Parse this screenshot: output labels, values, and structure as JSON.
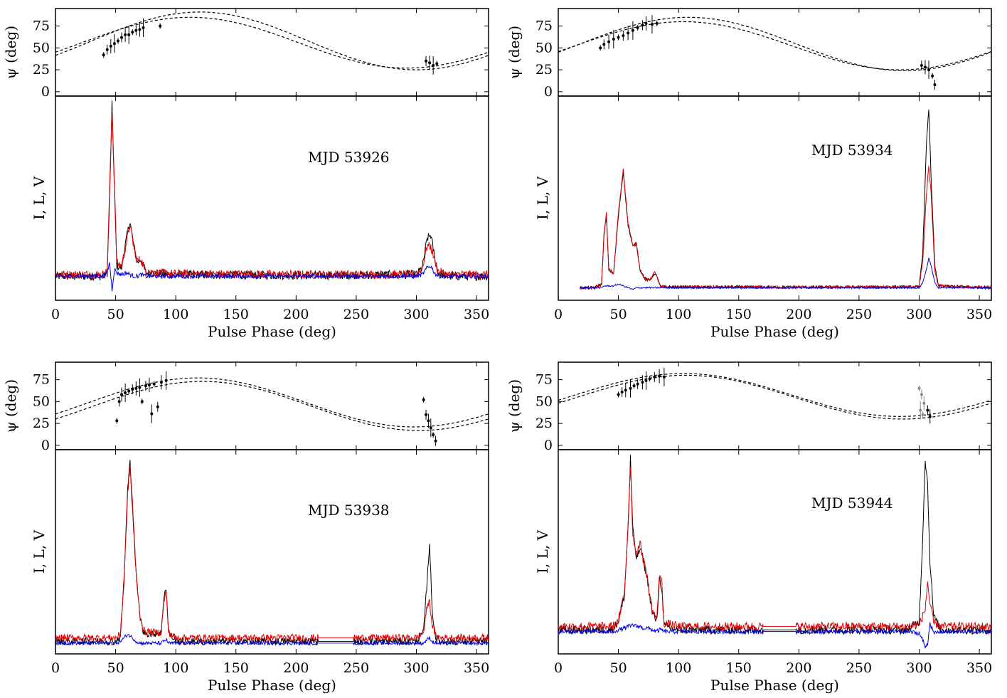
{
  "chart_data": [
    {
      "type": "line",
      "annotation": "MJD 53926",
      "xlabel": "Pulse Phase (deg)",
      "ylabel_top": "ψ (deg)",
      "ylabel_bottom": "I, L, V",
      "xlim": [
        0,
        360
      ],
      "xticks": [
        0,
        50,
        100,
        150,
        200,
        250,
        300,
        350
      ],
      "psi_ylim": [
        -5,
        95
      ],
      "psi_yticks": [
        0,
        25,
        50,
        75
      ],
      "rvm_curves": [
        {
          "name": "",
          "min": 25,
          "max": 91,
          "peak_phase": 120
        },
        {
          "name": "",
          "min": 27,
          "max": 85,
          "peak_phase": 112
        }
      ],
      "pa_points": [
        {
          "x": 40,
          "y": 42
        },
        {
          "x": 43,
          "y": 48
        },
        {
          "x": 46,
          "y": 52
        },
        {
          "x": 49,
          "y": 55
        },
        {
          "x": 52,
          "y": 58
        },
        {
          "x": 55,
          "y": 62
        },
        {
          "x": 58,
          "y": 65
        },
        {
          "x": 61,
          "y": 65
        },
        {
          "x": 64,
          "y": 68
        },
        {
          "x": 67,
          "y": 70
        },
        {
          "x": 70,
          "y": 71
        },
        {
          "x": 73,
          "y": 73
        },
        {
          "x": 87,
          "y": 75
        },
        {
          "x": 308,
          "y": 35
        },
        {
          "x": 311,
          "y": 33
        },
        {
          "x": 314,
          "y": 30
        },
        {
          "x": 317,
          "y": 32
        }
      ],
      "profile_ylim": [
        -0.14,
        1.05
      ],
      "profile_x": [
        0,
        20,
        40,
        43,
        45,
        47,
        49,
        51,
        55,
        59,
        62,
        65,
        68,
        71,
        75,
        85,
        100,
        200,
        300,
        305,
        309,
        312,
        315,
        318,
        325,
        360
      ],
      "series": [
        {
          "name": "I",
          "color": "#000000",
          "values": [
            0,
            0,
            0,
            0.02,
            0.45,
            1.0,
            0.5,
            0.06,
            0.05,
            0.22,
            0.32,
            0.18,
            0.08,
            0.1,
            0.02,
            0.015,
            0.01,
            0.005,
            0.01,
            0.05,
            0.22,
            0.24,
            0.12,
            0.02,
            0,
            0
          ]
        },
        {
          "name": "L",
          "color": "#e00000",
          "values": [
            0.01,
            0.01,
            0.01,
            0.03,
            0.5,
            0.98,
            0.55,
            0.08,
            0.06,
            0.2,
            0.3,
            0.17,
            0.09,
            0.1,
            0.03,
            0.02,
            0.015,
            0.01,
            0.01,
            0.05,
            0.18,
            0.17,
            0.1,
            0.03,
            0.01,
            0.01
          ]
        },
        {
          "name": "V",
          "color": "#0000e0",
          "values": [
            0,
            0,
            0,
            0.02,
            0.08,
            -0.08,
            0.04,
            0.02,
            0.01,
            0.02,
            0.01,
            0.0,
            0.0,
            0.01,
            0.0,
            0.0,
            0.0,
            0.0,
            0.0,
            0.01,
            0.05,
            0.06,
            0.02,
            0.0,
            0,
            0
          ]
        }
      ],
      "noise_amplitude": 0.025,
      "gaps": []
    },
    {
      "type": "line",
      "annotation": "MJD 53934",
      "xlabel": "Pulse Phase (deg)",
      "ylabel_top": "ψ (deg)",
      "ylabel_bottom": "I, L, V",
      "xlim": [
        0,
        360
      ],
      "xticks": [
        0,
        50,
        100,
        150,
        200,
        250,
        300,
        350
      ],
      "psi_ylim": [
        -5,
        95
      ],
      "psi_yticks": [
        0,
        25,
        50,
        75
      ],
      "rvm_curves": [
        {
          "name": "",
          "min": 24,
          "max": 85,
          "peak_phase": 108
        },
        {
          "name": "",
          "min": 25,
          "max": 80,
          "peak_phase": 104
        }
      ],
      "pa_points": [
        {
          "x": 35,
          "y": 50
        },
        {
          "x": 38,
          "y": 54
        },
        {
          "x": 42,
          "y": 57
        },
        {
          "x": 46,
          "y": 60
        },
        {
          "x": 50,
          "y": 62
        },
        {
          "x": 54,
          "y": 64
        },
        {
          "x": 58,
          "y": 67
        },
        {
          "x": 62,
          "y": 70
        },
        {
          "x": 66,
          "y": 73
        },
        {
          "x": 70,
          "y": 76
        },
        {
          "x": 73,
          "y": 78
        },
        {
          "x": 78,
          "y": 77
        },
        {
          "x": 82,
          "y": 78
        },
        {
          "x": 302,
          "y": 30
        },
        {
          "x": 305,
          "y": 28
        },
        {
          "x": 308,
          "y": 25
        },
        {
          "x": 311,
          "y": 18
        },
        {
          "x": 313,
          "y": 8
        }
      ],
      "profile_ylim": [
        -0.07,
        1.07
      ],
      "profile_x": [
        18,
        30,
        36,
        38,
        40,
        42,
        46,
        50,
        54,
        58,
        62,
        65,
        68,
        72,
        76,
        80,
        82,
        85,
        100,
        200,
        300,
        303,
        306,
        308,
        310,
        313,
        316,
        360
      ],
      "series": [
        {
          "name": "I",
          "color": "#000000",
          "values": [
            0,
            0,
            0.02,
            0.3,
            0.4,
            0.1,
            0.08,
            0.4,
            0.65,
            0.35,
            0.23,
            0.25,
            0.1,
            0.05,
            0.04,
            0.08,
            0.06,
            0.005,
            0.004,
            0.003,
            0.004,
            0.2,
            0.8,
            1.0,
            0.6,
            0.12,
            0.01,
            0
          ]
        },
        {
          "name": "L",
          "color": "#e00000",
          "values": [
            0,
            0,
            0.02,
            0.28,
            0.42,
            0.1,
            0.08,
            0.42,
            0.66,
            0.36,
            0.24,
            0.24,
            0.1,
            0.05,
            0.04,
            0.09,
            0.06,
            0.005,
            0.004,
            0.003,
            0.004,
            0.15,
            0.52,
            0.68,
            0.52,
            0.1,
            0.01,
            0
          ]
        },
        {
          "name": "V",
          "color": "#0000e0",
          "values": [
            0,
            0,
            0.0,
            0.01,
            0.01,
            0.01,
            0.01,
            0.02,
            0.01,
            0.0,
            -0.01,
            0.0,
            0.0,
            0.0,
            0.0,
            0.0,
            0.0,
            0.0,
            0.0,
            0.0,
            0.0,
            0.03,
            0.1,
            0.17,
            0.12,
            0.03,
            0.0,
            0
          ]
        }
      ],
      "noise_amplitude": 0.008,
      "gaps": []
    },
    {
      "type": "line",
      "annotation": "MJD 53938",
      "xlabel": "Pulse Phase (deg)",
      "ylabel_top": "ψ (deg)",
      "ylabel_bottom": "I, L, V",
      "xlim": [
        0,
        360
      ],
      "xticks": [
        0,
        50,
        100,
        150,
        200,
        250,
        300,
        350
      ],
      "psi_ylim": [
        -5,
        95
      ],
      "psi_yticks": [
        0,
        25,
        50,
        75
      ],
      "rvm_curves": [
        {
          "name": "",
          "min": 21,
          "max": 77,
          "peak_phase": 118
        },
        {
          "name": "",
          "min": 17,
          "max": 73,
          "peak_phase": 122
        }
      ],
      "pa_points": [
        {
          "x": 51,
          "y": 28
        },
        {
          "x": 53,
          "y": 50
        },
        {
          "x": 55,
          "y": 58
        },
        {
          "x": 58,
          "y": 60
        },
        {
          "x": 61,
          "y": 62
        },
        {
          "x": 64,
          "y": 64
        },
        {
          "x": 67,
          "y": 65
        },
        {
          "x": 70,
          "y": 66
        },
        {
          "x": 72,
          "y": 50
        },
        {
          "x": 75,
          "y": 68
        },
        {
          "x": 78,
          "y": 69
        },
        {
          "x": 80,
          "y": 36
        },
        {
          "x": 82,
          "y": 70
        },
        {
          "x": 85,
          "y": 44
        },
        {
          "x": 88,
          "y": 72
        },
        {
          "x": 92,
          "y": 74
        },
        {
          "x": 306,
          "y": 52
        },
        {
          "x": 308,
          "y": 35
        },
        {
          "x": 310,
          "y": 28
        },
        {
          "x": 312,
          "y": 20
        },
        {
          "x": 314,
          "y": 12
        },
        {
          "x": 316,
          "y": 5
        }
      ],
      "profile_ylim": [
        -0.07,
        1.07
      ],
      "profile_x": [
        0,
        50,
        54,
        57,
        60,
        62,
        64,
        67,
        70,
        73,
        80,
        88,
        90,
        92,
        94,
        100,
        150,
        218,
        248,
        300,
        306,
        309,
        311,
        313,
        316,
        320,
        360
      ],
      "series": [
        {
          "name": "I",
          "color": "#000000",
          "values": [
            0,
            0,
            0.03,
            0.35,
            0.85,
            1.0,
            0.75,
            0.38,
            0.15,
            0.05,
            0.04,
            0.05,
            0.25,
            0.3,
            0.05,
            0.0,
            0.0,
            0.0,
            0.0,
            0.0,
            0.05,
            0.35,
            0.55,
            0.18,
            0.02,
            0,
            0
          ]
        },
        {
          "name": "L",
          "color": "#e00000",
          "values": [
            0.02,
            0.02,
            0.04,
            0.33,
            0.82,
            0.98,
            0.78,
            0.38,
            0.16,
            0.06,
            0.05,
            0.05,
            0.22,
            0.28,
            0.05,
            0.02,
            0.02,
            0.02,
            0.02,
            0.02,
            0.05,
            0.2,
            0.22,
            0.1,
            0.03,
            0.02,
            0.02
          ]
        },
        {
          "name": "V",
          "color": "#0000e0",
          "values": [
            -0.01,
            -0.01,
            0.0,
            0.02,
            0.04,
            0.03,
            0.02,
            0.0,
            -0.01,
            -0.01,
            -0.01,
            -0.01,
            0.0,
            0.01,
            -0.01,
            -0.01,
            -0.01,
            -0.01,
            -0.01,
            -0.01,
            -0.01,
            0.01,
            0.02,
            0.0,
            -0.01,
            -0.01,
            -0.01
          ]
        }
      ],
      "noise_amplitude": 0.02,
      "gaps": [
        [
          218,
          248
        ]
      ]
    },
    {
      "type": "line",
      "annotation": "MJD 53944",
      "xlabel": "Pulse Phase (deg)",
      "ylabel_top": "ψ (deg)",
      "ylabel_bottom": "I, L, V",
      "xlim": [
        0,
        360
      ],
      "xticks": [
        0,
        50,
        100,
        150,
        200,
        250,
        300,
        350
      ],
      "psi_ylim": [
        -5,
        95
      ],
      "psi_yticks": [
        0,
        25,
        50,
        75
      ],
      "rvm_curves": [
        {
          "name": "",
          "min": 33,
          "max": 82,
          "peak_phase": 104
        },
        {
          "name": "",
          "min": 30,
          "max": 80,
          "peak_phase": 106
        }
      ],
      "pa_points": [
        {
          "x": 50,
          "y": 58
        },
        {
          "x": 53,
          "y": 61
        },
        {
          "x": 56,
          "y": 63
        },
        {
          "x": 60,
          "y": 65
        },
        {
          "x": 63,
          "y": 68
        },
        {
          "x": 66,
          "y": 70
        },
        {
          "x": 70,
          "y": 72
        },
        {
          "x": 73,
          "y": 74
        },
        {
          "x": 76,
          "y": 76
        },
        {
          "x": 80,
          "y": 78
        },
        {
          "x": 84,
          "y": 79
        },
        {
          "x": 88,
          "y": 78
        },
        {
          "x": 300,
          "y": 65,
          "color": "#888888"
        },
        {
          "x": 302,
          "y": 58,
          "color": "#888888"
        },
        {
          "x": 304,
          "y": 48,
          "color": "#888888"
        },
        {
          "x": 301,
          "y": 40,
          "color": "#888888"
        },
        {
          "x": 303,
          "y": 35,
          "color": "#888888"
        },
        {
          "x": 307,
          "y": 40
        },
        {
          "x": 309,
          "y": 33
        }
      ],
      "profile_ylim": [
        -0.14,
        1.05
      ],
      "profile_x": [
        0,
        45,
        50,
        55,
        58,
        60,
        62,
        65,
        68,
        70,
        74,
        78,
        82,
        84,
        86,
        88,
        100,
        170,
        198,
        290,
        300,
        303,
        305,
        307,
        309,
        312,
        318,
        360
      ],
      "series": [
        {
          "name": "I",
          "color": "#000000",
          "values": [
            0,
            0,
            0.05,
            0.2,
            0.6,
            1.0,
            0.58,
            0.42,
            0.47,
            0.43,
            0.3,
            0.1,
            0.05,
            0.3,
            0.25,
            0.02,
            0.0,
            0.0,
            0.0,
            0.0,
            0.05,
            0.55,
            1.0,
            0.85,
            0.4,
            0.08,
            0.0,
            0
          ]
        },
        {
          "name": "L",
          "color": "#e00000",
          "values": [
            0.02,
            0.02,
            0.05,
            0.22,
            0.6,
            0.97,
            0.55,
            0.45,
            0.5,
            0.44,
            0.3,
            0.12,
            0.06,
            0.33,
            0.28,
            0.04,
            0.02,
            0.02,
            0.02,
            0.02,
            0.03,
            0.08,
            0.12,
            0.28,
            0.15,
            0.04,
            0.02,
            0.02
          ]
        },
        {
          "name": "V",
          "color": "#0000e0",
          "values": [
            -0.01,
            -0.01,
            0.0,
            0.01,
            0.02,
            0.02,
            0.03,
            0.02,
            0.02,
            0.01,
            0.01,
            0.0,
            -0.01,
            0.0,
            0.0,
            -0.01,
            -0.01,
            -0.01,
            -0.01,
            -0.01,
            -0.02,
            -0.06,
            -0.1,
            -0.08,
            0.04,
            -0.02,
            -0.01,
            -0.01
          ]
        }
      ],
      "noise_amplitude": 0.025,
      "gaps": [
        [
          170,
          198
        ]
      ]
    }
  ]
}
